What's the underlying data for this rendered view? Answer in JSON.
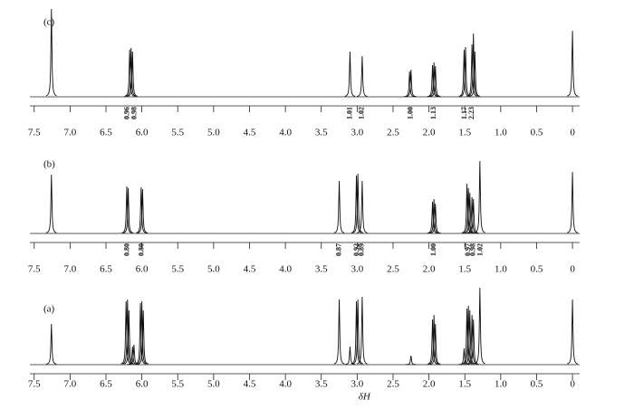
{
  "chart_data": [
    {
      "type": "nmr",
      "label": "(c)",
      "xlim": [
        7.56,
        -0.1
      ],
      "ylim": [
        0,
        100
      ],
      "xticks": [
        7.5,
        {
          "value": 7,
          "label": "7.0"
        },
        6.5,
        {
          "value": 6,
          "label": "6.0"
        },
        5.5,
        {
          "value": 5,
          "label": "5.0"
        },
        4.5,
        {
          "value": 4,
          "label": "4.0"
        },
        3.5,
        {
          "value": 3,
          "label": "3.0"
        },
        2.5,
        {
          "value": 2,
          "label": "2.0"
        },
        1.5,
        {
          "value": 1,
          "label": "1.0"
        },
        0.5,
        0
      ],
      "x": [
        7.26,
        6.17,
        6.15,
        6.13,
        3.1,
        2.93,
        2.27,
        2.25,
        1.95,
        1.93,
        1.91,
        1.51,
        1.49,
        1.4,
        1.38,
        1.36,
        0
      ],
      "values": [
        97,
        52,
        54,
        50,
        50,
        45,
        28,
        30,
        35,
        38,
        34,
        52,
        55,
        58,
        70,
        50,
        73
      ],
      "integrals": {
        "x": [
          6.2,
          6.1,
          3.1,
          2.93,
          2.25,
          1.93,
          1.5,
          1.4
        ],
        "values": [
          0.96,
          0.98,
          1.01,
          1.02,
          1,
          1.13,
          1.17,
          2.23
        ],
        "value_labels": [
          "0.96",
          "0.98",
          "1.01",
          "1.02",
          "1.00",
          "1.13",
          "1.17",
          "2.23"
        ]
      }
    },
    {
      "type": "nmr",
      "label": "(b)",
      "xlim": [
        7.56,
        -0.1
      ],
      "ylim": [
        0,
        100
      ],
      "xticks": [
        7.5,
        {
          "value": 7,
          "label": "7.0"
        },
        6.5,
        {
          "value": 6,
          "label": "6.0"
        },
        5.5,
        {
          "value": 5,
          "label": "5.0"
        },
        4.5,
        {
          "value": 4,
          "label": "4.0"
        },
        3.5,
        {
          "value": 3,
          "label": "3.0"
        },
        2.5,
        {
          "value": 2,
          "label": "2.0"
        },
        1.5,
        {
          "value": 1,
          "label": "1.0"
        },
        0.5,
        0
      ],
      "x": [
        7.26,
        6.21,
        6.19,
        6.01,
        5.99,
        3.25,
        3.01,
        2.99,
        2.93,
        1.95,
        1.93,
        1.91,
        1.47,
        1.45,
        1.43,
        1.4,
        1.38,
        1.29,
        0
      ],
      "values": [
        65,
        52,
        50,
        51,
        49,
        58,
        64,
        66,
        58,
        35,
        38,
        33,
        55,
        50,
        45,
        40,
        38,
        80,
        68
      ],
      "integrals": {
        "x": [
          6.2,
          6.0,
          3.25,
          3.0,
          2.93,
          1.93,
          1.45,
          1.38,
          1.28
        ],
        "values": [
          0.8,
          0.8,
          0.87,
          0.92,
          0.89,
          1,
          0.97,
          0.98,
          1.02
        ],
        "value_labels": [
          "0.80",
          "0.80",
          "0.87",
          "0.92",
          "0.89",
          "1.00",
          "0.97",
          "0.98",
          "1.02"
        ]
      }
    },
    {
      "type": "nmr",
      "label": "(a)",
      "xlabel": "δH",
      "xlim": [
        7.56,
        -0.1
      ],
      "ylim": [
        0,
        100
      ],
      "xticks": [
        7.5,
        {
          "value": 7,
          "label": "7.0"
        },
        6.5,
        {
          "value": 6,
          "label": "6.0"
        },
        5.5,
        {
          "value": 5,
          "label": "5.0"
        },
        4.5,
        {
          "value": 4,
          "label": "4.0"
        },
        3.5,
        {
          "value": 3,
          "label": "3.0"
        },
        2.5,
        {
          "value": 2,
          "label": "2.0"
        },
        1.5,
        {
          "value": 1,
          "label": "1.0"
        },
        0.5,
        0
      ],
      "x": [
        7.26,
        6.22,
        6.2,
        6.18,
        6.13,
        6.11,
        6.02,
        6.0,
        5.98,
        3.25,
        3.1,
        3.01,
        2.99,
        2.93,
        2.25,
        1.95,
        1.93,
        1.91,
        1.51,
        1.47,
        1.45,
        1.43,
        1.4,
        1.38,
        1.29,
        0
      ],
      "values": [
        45,
        70,
        72,
        60,
        20,
        22,
        68,
        70,
        60,
        72,
        20,
        70,
        72,
        75,
        10,
        50,
        55,
        45,
        18,
        62,
        65,
        60,
        55,
        50,
        85,
        72
      ]
    }
  ]
}
